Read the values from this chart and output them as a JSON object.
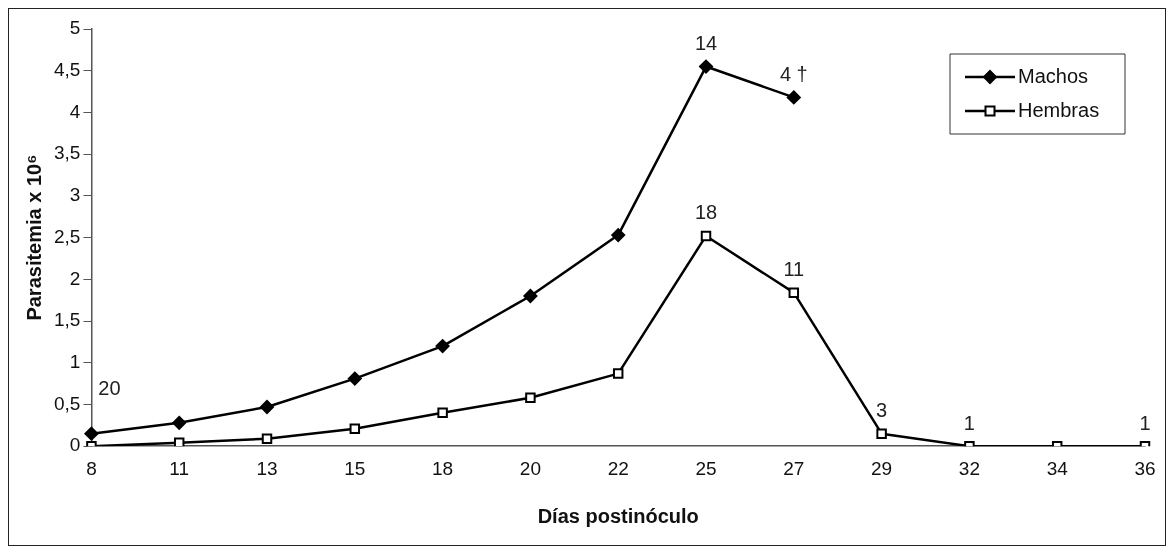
{
  "chart_data": {
    "type": "line",
    "xlabel": "Días postinóculo",
    "ylabel": "Parasitemia x 10⁶",
    "categories": [
      "8",
      "11",
      "13",
      "15",
      "18",
      "20",
      "22",
      "25",
      "27",
      "29",
      "32",
      "34",
      "36"
    ],
    "series": [
      {
        "name": "Machos",
        "color": "#000000",
        "marker": "diamond",
        "values": [
          0.15,
          0.28,
          0.47,
          0.81,
          1.2,
          1.8,
          2.53,
          4.55,
          4.18,
          null,
          null,
          null,
          null
        ]
      },
      {
        "name": "Hembras",
        "color": "#000000",
        "marker": "square",
        "values": [
          0,
          0.04,
          0.09,
          0.21,
          0.4,
          0.58,
          0.87,
          2.52,
          1.84,
          0.15,
          0,
          0,
          0
        ]
      }
    ],
    "ylim": [
      0,
      5
    ],
    "yticks": [
      0,
      {
        "value": 0.5,
        "label": "0,5"
      },
      1,
      {
        "value": 1.5,
        "label": "1,5"
      },
      2,
      {
        "value": 2.5,
        "label": "2,5"
      },
      3,
      {
        "value": 3.5,
        "label": "3,5"
      },
      4,
      {
        "value": 4.5,
        "label": "4,5"
      },
      5
    ],
    "annotations": [
      {
        "text": "20",
        "x": "8",
        "y": 0.15
      },
      {
        "text": "14",
        "x": "25",
        "y": 4.55
      },
      {
        "text": "4 †",
        "x": "27",
        "y": 4.18
      },
      {
        "text": "18",
        "x": "25",
        "y": 2.52
      },
      {
        "text": "11",
        "x": "27",
        "y": 1.84
      },
      {
        "text": "3",
        "x": "29",
        "y": 0.15
      },
      {
        "text": "1",
        "x": "32",
        "y": 0
      },
      {
        "text": "1",
        "x": "36",
        "y": 0
      }
    ],
    "grid": false,
    "legend": "top right",
    "line_style": "solid"
  }
}
